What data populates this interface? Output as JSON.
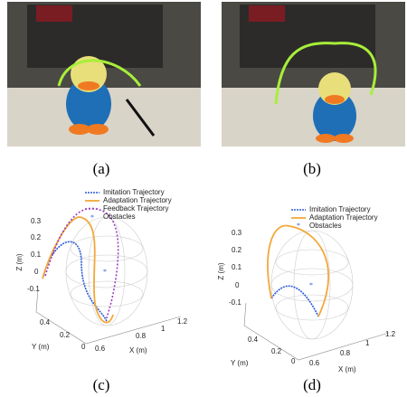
{
  "figure": {
    "panels": [
      {
        "label": "(a)"
      },
      {
        "label": "(b)"
      },
      {
        "label": "(c)",
        "legend": [
          "Imitation Trajectory",
          "Adaptation Trajectory",
          "Feedback Trajectory",
          "Obstacles"
        ],
        "z_label": "Z (m)",
        "z_ticks": [
          "0.3",
          "0.2",
          "0.1",
          "0",
          "-0.1"
        ],
        "y_label": "Y (m)",
        "y_ticks": [
          "0.4",
          "0.2",
          "0"
        ],
        "x_label": "X (m)",
        "x_ticks": [
          "0.6",
          "0.8",
          "1",
          "1.2"
        ]
      },
      {
        "label": "(d)",
        "legend": [
          "Imitation Trajectory",
          "Adaptation Trajectory",
          "Obstacles"
        ],
        "z_label": "Z (m)",
        "z_ticks": [
          "0.3",
          "0.2",
          "0.1",
          "0",
          "-0.1"
        ],
        "y_label": "Y (m)",
        "y_ticks": [
          "0.4",
          "0.2",
          "0"
        ],
        "x_label": "X (m)",
        "x_ticks": [
          "0.6",
          "0.8",
          "1",
          "1.2"
        ]
      }
    ]
  }
}
